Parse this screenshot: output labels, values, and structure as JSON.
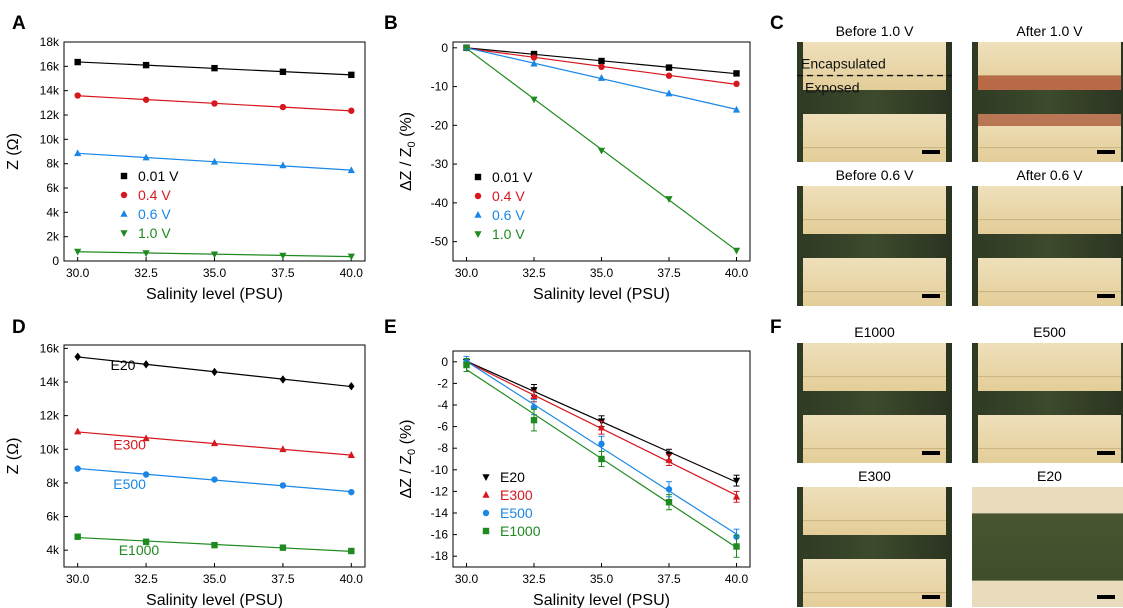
{
  "colors": {
    "black": "#000000",
    "red": "#d6171e",
    "blue": "#1a87e6",
    "green": "#1f8a1f"
  },
  "chart_data": [
    {
      "panel": "A",
      "type": "line",
      "xlabel": "Salinity level (PSU)",
      "ylabel": "Z (Ω)",
      "xlim": [
        29.5,
        40.5
      ],
      "ylim": [
        0,
        18000
      ],
      "xticks": [
        30,
        32.5,
        35,
        37.5,
        40
      ],
      "xtick_labels": [
        "30.0",
        "32.5",
        "35.0",
        "37.5",
        "40.0"
      ],
      "yticks": [
        0,
        2000,
        4000,
        6000,
        8000,
        10000,
        12000,
        14000,
        16000,
        18000
      ],
      "ytick_labels": [
        "0",
        "2k",
        "4k",
        "6k",
        "8k",
        "10k",
        "12k",
        "14k",
        "16k",
        "18k"
      ],
      "x": [
        30,
        32.5,
        35,
        37.5,
        40
      ],
      "legend_position": "center-left",
      "series": [
        {
          "name": "0.01 V",
          "color": "#000000",
          "marker": "square",
          "values": [
            16350,
            16100,
            15850,
            15550,
            15300
          ]
        },
        {
          "name": "0.4 V",
          "color": "#d6171e",
          "marker": "circle",
          "values": [
            13600,
            13250,
            12950,
            12650,
            12350
          ]
        },
        {
          "name": "0.6 V",
          "color": "#1a87e6",
          "marker": "triangle-up",
          "values": [
            8850,
            8500,
            8150,
            7850,
            7450
          ]
        },
        {
          "name": "1.0 V",
          "color": "#1f8a1f",
          "marker": "triangle-down",
          "values": [
            780,
            650,
            550,
            450,
            380
          ]
        }
      ]
    },
    {
      "panel": "B",
      "type": "line",
      "xlabel": "Salinity level (PSU)",
      "ylabel": "ΔZ / Z0 (%)",
      "xlim": [
        29.5,
        40.5
      ],
      "ylim": [
        -55,
        1.5
      ],
      "xticks": [
        30,
        32.5,
        35,
        37.5,
        40
      ],
      "xtick_labels": [
        "30.0",
        "32.5",
        "35.0",
        "37.5",
        "40.0"
      ],
      "yticks": [
        0,
        -10,
        -20,
        -30,
        -40,
        -50
      ],
      "ytick_labels": [
        "0",
        "-10",
        "-20",
        "-30",
        "-40",
        "-50"
      ],
      "x": [
        30,
        32.5,
        35,
        37.5,
        40
      ],
      "legend_position": "center-left",
      "series": [
        {
          "name": "0.01 V",
          "color": "#000000",
          "marker": "square",
          "values": [
            0,
            -1.6,
            -3.4,
            -5.1,
            -6.6
          ]
        },
        {
          "name": "0.4 V",
          "color": "#d6171e",
          "marker": "circle",
          "values": [
            0,
            -2.5,
            -4.9,
            -7.2,
            -9.3
          ]
        },
        {
          "name": "0.6 V",
          "color": "#1a87e6",
          "marker": "triangle-up",
          "values": [
            0,
            -4.1,
            -7.8,
            -11.8,
            -16.0
          ]
        },
        {
          "name": "1.0 V",
          "color": "#1f8a1f",
          "marker": "triangle-down",
          "values": [
            0,
            -13.3,
            -26.5,
            -39.0,
            -52.3
          ]
        }
      ]
    },
    {
      "panel": "D",
      "type": "line",
      "xlabel": "Salinity level (PSU)",
      "ylabel": "Z (Ω)",
      "xlim": [
        29.5,
        40.5
      ],
      "ylim": [
        3000,
        16200
      ],
      "xticks": [
        30,
        32.5,
        35,
        37.5,
        40
      ],
      "xtick_labels": [
        "30.0",
        "32.5",
        "35.0",
        "37.5",
        "40.0"
      ],
      "yticks": [
        4000,
        6000,
        8000,
        10000,
        12000,
        14000,
        16000
      ],
      "ytick_labels": [
        "4k",
        "6k",
        "8k",
        "10k",
        "12k",
        "14k",
        "16k"
      ],
      "x": [
        30,
        32.5,
        35,
        37.5,
        40
      ],
      "series": [
        {
          "name": "E20",
          "color": "#000000",
          "marker": "diamond",
          "values": [
            15500,
            15050,
            14600,
            14150,
            13750
          ],
          "label_at": [
            31.2,
            14700
          ]
        },
        {
          "name": "E300",
          "color": "#d6171e",
          "marker": "triangle-up",
          "values": [
            11050,
            10650,
            10350,
            10000,
            9650
          ],
          "label_at": [
            31.3,
            10000
          ]
        },
        {
          "name": "E500",
          "color": "#1a87e6",
          "marker": "circle",
          "values": [
            8850,
            8500,
            8200,
            7850,
            7450
          ],
          "label_at": [
            31.3,
            7650
          ]
        },
        {
          "name": "E1000",
          "color": "#1f8a1f",
          "marker": "square",
          "values": [
            4800,
            4500,
            4300,
            4150,
            3950
          ],
          "label_at": [
            31.5,
            3700
          ]
        }
      ]
    },
    {
      "panel": "E",
      "type": "line",
      "xlabel": "Salinity level (PSU)",
      "ylabel": "ΔZ / Z0 (%)",
      "xlim": [
        29.5,
        40.5
      ],
      "ylim": [
        -19,
        1
      ],
      "xticks": [
        30,
        32.5,
        35,
        37.5,
        40
      ],
      "xtick_labels": [
        "30.0",
        "32.5",
        "35.0",
        "37.5",
        "40.0"
      ],
      "yticks": [
        0,
        -2,
        -4,
        -6,
        -8,
        -10,
        -12,
        -14,
        -16,
        -18
      ],
      "ytick_labels": [
        "0",
        "-2",
        "-4",
        "-6",
        "-8",
        "-10",
        "-12",
        "-14",
        "-16",
        "-18"
      ],
      "x": [
        30,
        32.5,
        35,
        37.5,
        40
      ],
      "legend_position": "lower-left",
      "series": [
        {
          "name": "E20",
          "color": "#000000",
          "marker": "triangle-down",
          "values": [
            0,
            -2.6,
            -5.5,
            -8.6,
            -11.0
          ],
          "errors": [
            0.3,
            0.5,
            0.5,
            0.5,
            0.5
          ]
        },
        {
          "name": "E300",
          "color": "#d6171e",
          "marker": "triangle-up",
          "values": [
            0,
            -3.2,
            -6.1,
            -9.1,
            -12.5
          ],
          "errors": [
            0.3,
            0.5,
            0.6,
            0.5,
            0.5
          ]
        },
        {
          "name": "E500",
          "color": "#1a87e6",
          "marker": "circle",
          "values": [
            0,
            -4.2,
            -7.6,
            -11.8,
            -16.2
          ],
          "errors": [
            0.5,
            0.7,
            0.7,
            0.7,
            0.7
          ]
        },
        {
          "name": "E1000",
          "color": "#1f8a1f",
          "marker": "square",
          "values": [
            -0.3,
            -5.4,
            -9.0,
            -13.0,
            -17.1
          ],
          "errors": [
            0.6,
            1.0,
            0.7,
            0.7,
            1.0
          ]
        }
      ]
    }
  ],
  "panels": {
    "A": "A",
    "B": "B",
    "C": "C",
    "D": "D",
    "E": "E",
    "F": "F"
  },
  "photos_c": [
    {
      "title": "Before 1.0 V",
      "type": "before1",
      "overlay_top": "Encapsulated",
      "overlay_bottom": "Exposed"
    },
    {
      "title": "After 1.0 V",
      "type": "after1"
    },
    {
      "title": "Before 0.6 V",
      "type": "plain"
    },
    {
      "title": "After 0.6 V",
      "type": "plain"
    }
  ],
  "photos_f": [
    {
      "title": "E1000",
      "type": "plain"
    },
    {
      "title": "E500",
      "type": "plain"
    },
    {
      "title": "E300",
      "type": "plain"
    },
    {
      "title": "E20",
      "type": "e20"
    }
  ]
}
